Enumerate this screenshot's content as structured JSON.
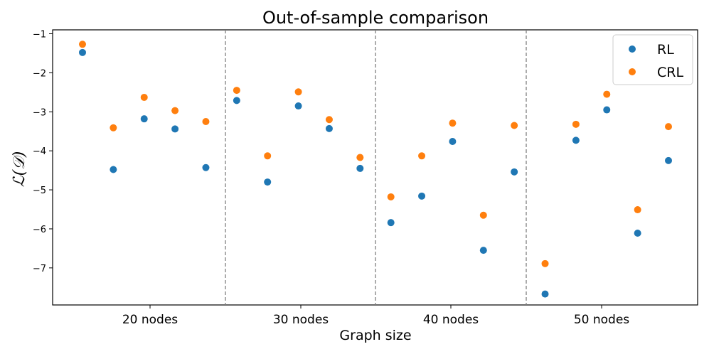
{
  "chart_data": {
    "type": "scatter",
    "title": "Out-of-sample comparison",
    "xlabel": "Graph size",
    "ylabel": "ℒ(𝒟)",
    "ylim": [
      -7.95,
      -0.9
    ],
    "xlim": [
      0,
      100
    ],
    "yticks": [
      -1,
      -2,
      -3,
      -4,
      -5,
      -6,
      -7
    ],
    "ytick_labels": [
      "−1",
      "−2",
      "−3",
      "−4",
      "−5",
      "−6",
      "−7"
    ],
    "xticks": [
      {
        "label": "20 nodes",
        "x": 16.5
      },
      {
        "label": "30 nodes",
        "x": 42
      },
      {
        "label": "40 nodes",
        "x": 67.5
      },
      {
        "label": "50 nodes",
        "x": 93
      }
    ],
    "separators": [
      29.5,
      55,
      80.5
    ],
    "legend": {
      "position": "top-right"
    },
    "series": [
      {
        "name": "RL",
        "color": "#1f77b4",
        "x": [
          5,
          10.7,
          16.4,
          22.1,
          27.8,
          30.8,
          36.5,
          42.2,
          47.9,
          53.6,
          56.6,
          62.3,
          68,
          73.7,
          79.4,
          82.3,
          88,
          93.7,
          99.4,
          105.1
        ],
        "values": [
          -1.48,
          -4.48,
          -3.18,
          -3.44,
          -4.43,
          -2.71,
          -4.8,
          -2.85,
          -3.43,
          -4.45,
          -5.84,
          -5.16,
          -3.76,
          -6.55,
          -4.54,
          -7.67,
          -3.73,
          -2.95,
          -6.11,
          -4.25
        ]
      },
      {
        "name": "CRL",
        "color": "#ff7f0e",
        "x": [
          5,
          10.7,
          16.4,
          22.1,
          27.8,
          30.8,
          36.5,
          42.2,
          47.9,
          53.6,
          56.6,
          62.3,
          68,
          73.7,
          79.4,
          82.3,
          88,
          93.7,
          99.4,
          105.1
        ],
        "values": [
          -1.27,
          -3.41,
          -2.63,
          -2.97,
          -3.25,
          -2.45,
          -4.13,
          -2.49,
          -3.2,
          -4.17,
          -5.18,
          -4.13,
          -3.29,
          -5.65,
          -3.35,
          -6.89,
          -3.32,
          -2.55,
          -5.51,
          -3.38
        ]
      }
    ]
  }
}
